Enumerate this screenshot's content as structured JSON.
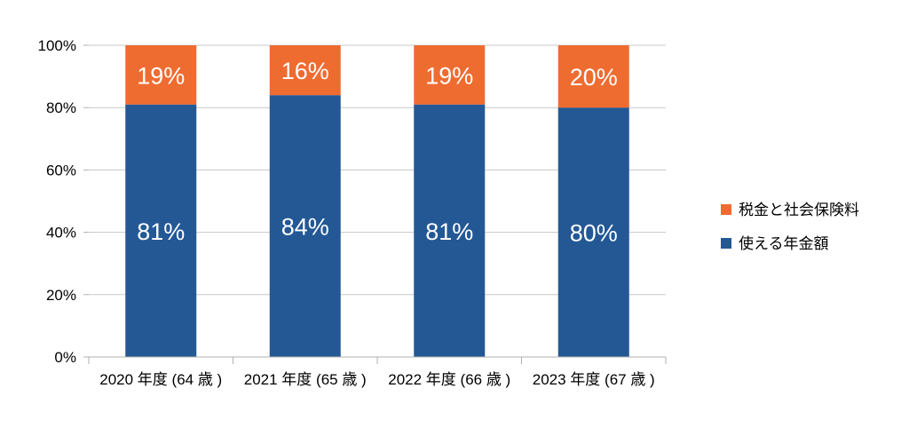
{
  "chart_data": {
    "type": "bar",
    "stacked": true,
    "percent_stacked": true,
    "categories": [
      "2020 年度 (64 歳 )",
      "2021 年度 (65 歳 )",
      "2022 年度 (66 歳 )",
      "2023 年度 (67 歳 )"
    ],
    "series": [
      {
        "name": "使える年金額",
        "values": [
          81,
          84,
          81,
          80
        ],
        "color": "#235895",
        "labels": [
          "81%",
          "84%",
          "81%",
          "80%"
        ]
      },
      {
        "name": "税金と社会保険料",
        "values": [
          19,
          16,
          19,
          20
        ],
        "color": "#ef6c31",
        "labels": [
          "19%",
          "16%",
          "19%",
          "20%"
        ]
      }
    ],
    "yticks": [
      "0%",
      "20%",
      "40%",
      "60%",
      "80%",
      "100%"
    ],
    "ylim": [
      0,
      100
    ],
    "grid": true,
    "legend_position": "right",
    "legend_order": [
      "税金と社会保険料",
      "使える年金額"
    ]
  }
}
